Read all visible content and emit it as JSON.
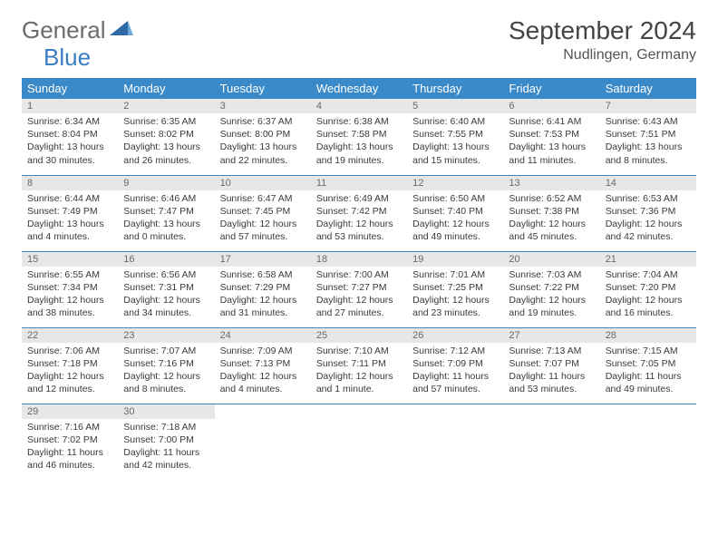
{
  "logo": {
    "text1": "General",
    "text2": "Blue"
  },
  "title": "September 2024",
  "location": "Nudlingen, Germany",
  "colors": {
    "header_bg": "#3a8ac9",
    "header_text": "#ffffff",
    "daynum_bg": "#e7e7e7",
    "daynum_text": "#6a6a6a",
    "body_text": "#3a3a3a",
    "rule": "#3a8ac9",
    "logo_gray": "#6b6b6b",
    "logo_blue": "#3a7fc4"
  },
  "weekdays": [
    "Sunday",
    "Monday",
    "Tuesday",
    "Wednesday",
    "Thursday",
    "Friday",
    "Saturday"
  ],
  "days": [
    {
      "n": 1,
      "sunrise": "6:34 AM",
      "sunset": "8:04 PM",
      "daylight": "13 hours and 30 minutes."
    },
    {
      "n": 2,
      "sunrise": "6:35 AM",
      "sunset": "8:02 PM",
      "daylight": "13 hours and 26 minutes."
    },
    {
      "n": 3,
      "sunrise": "6:37 AM",
      "sunset": "8:00 PM",
      "daylight": "13 hours and 22 minutes."
    },
    {
      "n": 4,
      "sunrise": "6:38 AM",
      "sunset": "7:58 PM",
      "daylight": "13 hours and 19 minutes."
    },
    {
      "n": 5,
      "sunrise": "6:40 AM",
      "sunset": "7:55 PM",
      "daylight": "13 hours and 15 minutes."
    },
    {
      "n": 6,
      "sunrise": "6:41 AM",
      "sunset": "7:53 PM",
      "daylight": "13 hours and 11 minutes."
    },
    {
      "n": 7,
      "sunrise": "6:43 AM",
      "sunset": "7:51 PM",
      "daylight": "13 hours and 8 minutes."
    },
    {
      "n": 8,
      "sunrise": "6:44 AM",
      "sunset": "7:49 PM",
      "daylight": "13 hours and 4 minutes."
    },
    {
      "n": 9,
      "sunrise": "6:46 AM",
      "sunset": "7:47 PM",
      "daylight": "13 hours and 0 minutes."
    },
    {
      "n": 10,
      "sunrise": "6:47 AM",
      "sunset": "7:45 PM",
      "daylight": "12 hours and 57 minutes."
    },
    {
      "n": 11,
      "sunrise": "6:49 AM",
      "sunset": "7:42 PM",
      "daylight": "12 hours and 53 minutes."
    },
    {
      "n": 12,
      "sunrise": "6:50 AM",
      "sunset": "7:40 PM",
      "daylight": "12 hours and 49 minutes."
    },
    {
      "n": 13,
      "sunrise": "6:52 AM",
      "sunset": "7:38 PM",
      "daylight": "12 hours and 45 minutes."
    },
    {
      "n": 14,
      "sunrise": "6:53 AM",
      "sunset": "7:36 PM",
      "daylight": "12 hours and 42 minutes."
    },
    {
      "n": 15,
      "sunrise": "6:55 AM",
      "sunset": "7:34 PM",
      "daylight": "12 hours and 38 minutes."
    },
    {
      "n": 16,
      "sunrise": "6:56 AM",
      "sunset": "7:31 PM",
      "daylight": "12 hours and 34 minutes."
    },
    {
      "n": 17,
      "sunrise": "6:58 AM",
      "sunset": "7:29 PM",
      "daylight": "12 hours and 31 minutes."
    },
    {
      "n": 18,
      "sunrise": "7:00 AM",
      "sunset": "7:27 PM",
      "daylight": "12 hours and 27 minutes."
    },
    {
      "n": 19,
      "sunrise": "7:01 AM",
      "sunset": "7:25 PM",
      "daylight": "12 hours and 23 minutes."
    },
    {
      "n": 20,
      "sunrise": "7:03 AM",
      "sunset": "7:22 PM",
      "daylight": "12 hours and 19 minutes."
    },
    {
      "n": 21,
      "sunrise": "7:04 AM",
      "sunset": "7:20 PM",
      "daylight": "12 hours and 16 minutes."
    },
    {
      "n": 22,
      "sunrise": "7:06 AM",
      "sunset": "7:18 PM",
      "daylight": "12 hours and 12 minutes."
    },
    {
      "n": 23,
      "sunrise": "7:07 AM",
      "sunset": "7:16 PM",
      "daylight": "12 hours and 8 minutes."
    },
    {
      "n": 24,
      "sunrise": "7:09 AM",
      "sunset": "7:13 PM",
      "daylight": "12 hours and 4 minutes."
    },
    {
      "n": 25,
      "sunrise": "7:10 AM",
      "sunset": "7:11 PM",
      "daylight": "12 hours and 1 minute."
    },
    {
      "n": 26,
      "sunrise": "7:12 AM",
      "sunset": "7:09 PM",
      "daylight": "11 hours and 57 minutes."
    },
    {
      "n": 27,
      "sunrise": "7:13 AM",
      "sunset": "7:07 PM",
      "daylight": "11 hours and 53 minutes."
    },
    {
      "n": 28,
      "sunrise": "7:15 AM",
      "sunset": "7:05 PM",
      "daylight": "11 hours and 49 minutes."
    },
    {
      "n": 29,
      "sunrise": "7:16 AM",
      "sunset": "7:02 PM",
      "daylight": "11 hours and 46 minutes."
    },
    {
      "n": 30,
      "sunrise": "7:18 AM",
      "sunset": "7:00 PM",
      "daylight": "11 hours and 42 minutes."
    }
  ],
  "labels": {
    "sunrise": "Sunrise:",
    "sunset": "Sunset:",
    "daylight": "Daylight:"
  },
  "grid": {
    "start_weekday": 0,
    "cols": 7
  }
}
